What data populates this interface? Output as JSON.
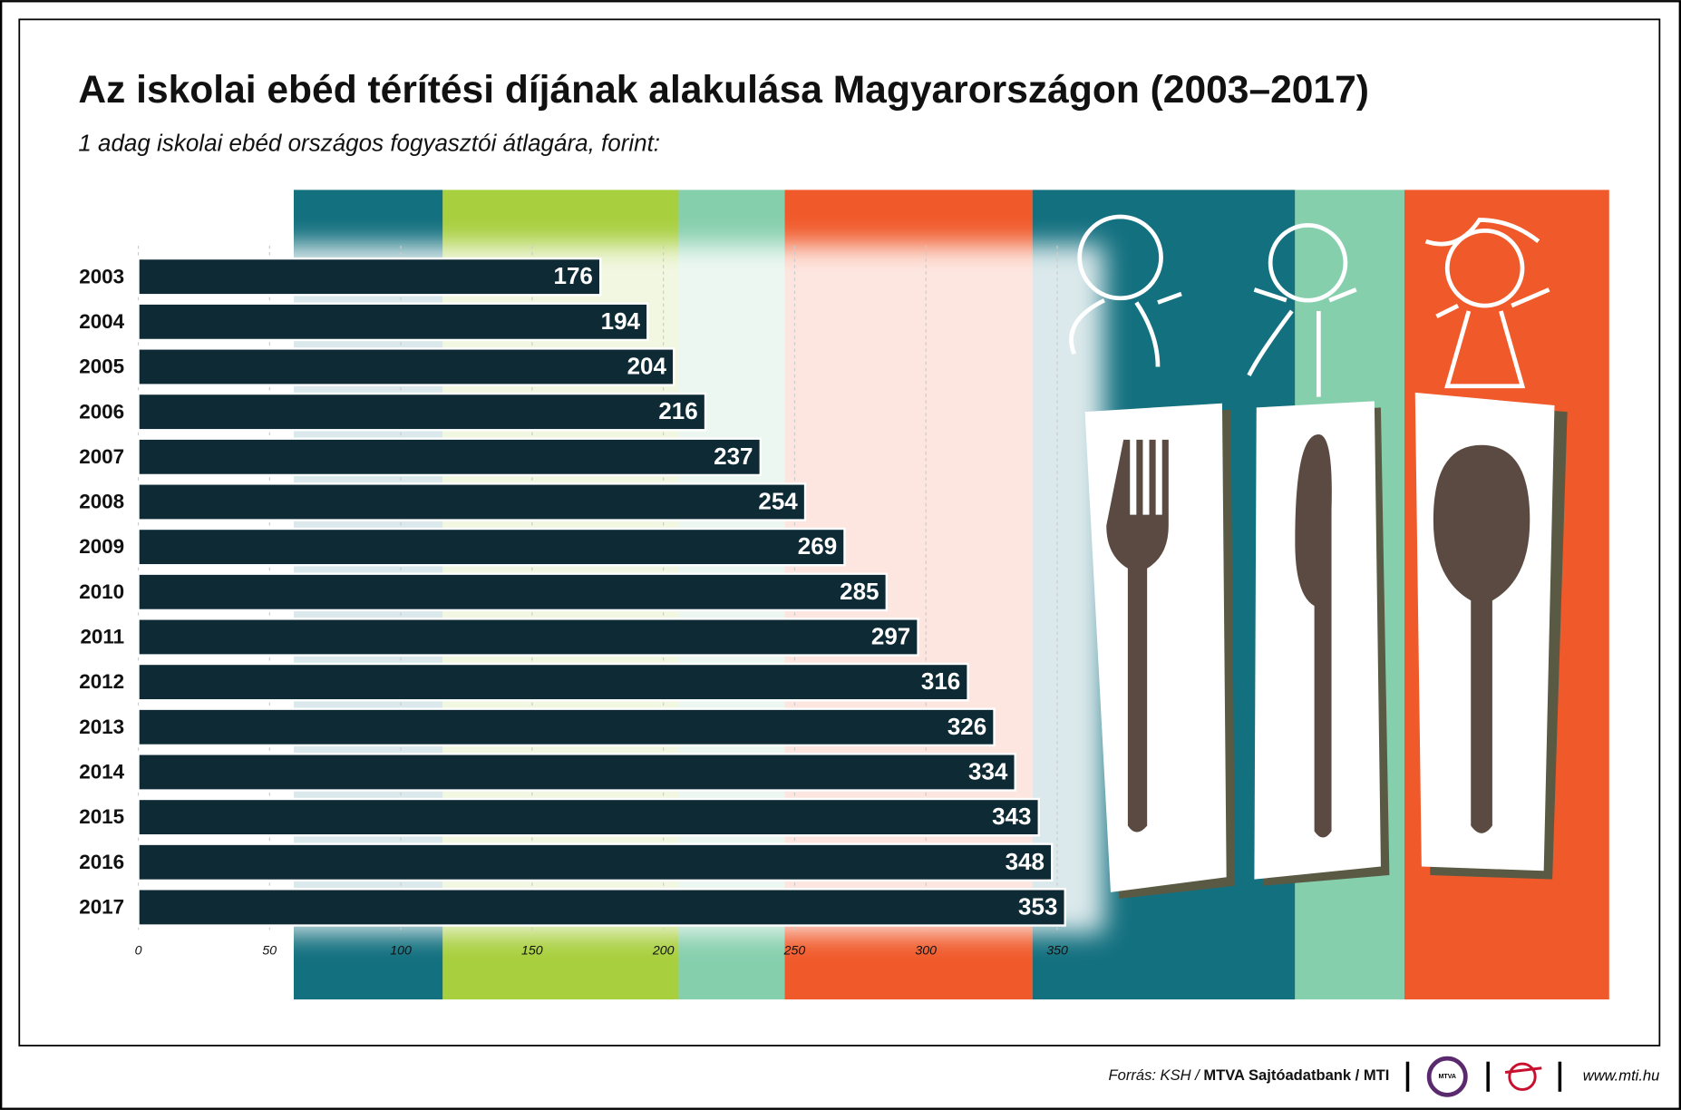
{
  "chart_data": {
    "type": "hbar",
    "title": "Az iskolai ebéd térítési díjának alakulása Magyarországon (2003–2017)",
    "subtitle": "1 adag iskolai ebéd országos fogyasztói átlagára, forint:",
    "categories": [
      "2003",
      "2004",
      "2005",
      "2006",
      "2007",
      "2008",
      "2009",
      "2010",
      "2011",
      "2012",
      "2013",
      "2014",
      "2015",
      "2016",
      "2017"
    ],
    "values": [
      176,
      194,
      204,
      216,
      237,
      254,
      269,
      285,
      297,
      316,
      326,
      334,
      343,
      348,
      353
    ],
    "color": "#0d2a35",
    "xlim": [
      0,
      375
    ],
    "xticks": [
      0,
      50,
      100,
      150,
      200,
      250,
      300,
      350
    ],
    "grid": true
  },
  "footer": {
    "source_prefix": "Forrás: KSH / ",
    "source_main": "MTVA Sajtóadatbank / MTI",
    "logo": "MTVA",
    "website": "www.mti.hu"
  }
}
